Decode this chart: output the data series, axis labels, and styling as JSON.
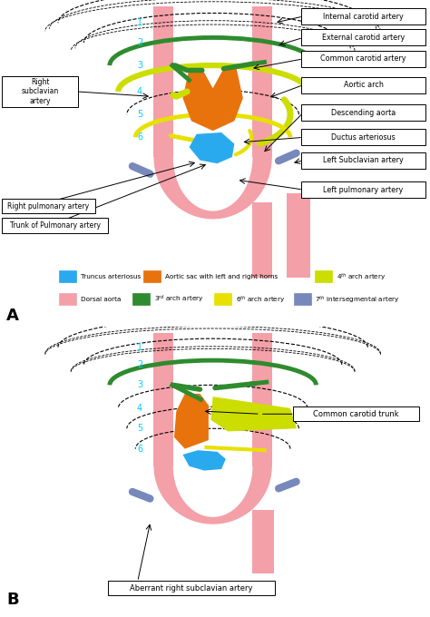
{
  "bg_color": "#ffffff",
  "pink_color": "#F4A0A8",
  "green_color": "#2E8B2E",
  "yellow4_color": "#CCDD00",
  "orange_color": "#E8720C",
  "blue_color": "#29AAEE",
  "bluedark_color": "#7788BB",
  "yellow6_color": "#E8E000",
  "labels_A_right": [
    "Internal carotid artery",
    "External carotid artery",
    "Common carotid artery",
    "Aortic arch",
    "Descending aorta",
    "Ductus arteriosus",
    "Left Subclavian artery",
    "Left pulmonary artery"
  ],
  "legend1_items": [
    {
      "color": "#29AAEE",
      "label": "Truncus arteriosus"
    },
    {
      "color": "#E8720C",
      "label": "Aortic sac with left and right horns"
    },
    {
      "color": "#CCDD00",
      "label": "4$^{th}$ arch artery"
    }
  ],
  "legend2_items": [
    {
      "color": "#F4A0A8",
      "label": "Dorsal aorta"
    },
    {
      "color": "#2E8B2E",
      "label": "3$^{rd}$ arch artery"
    },
    {
      "color": "#E8E000",
      "label": "6$^{th}$ arch artery"
    },
    {
      "color": "#7788BB",
      "label": "7$^{th}$ intersegmental artery"
    }
  ]
}
